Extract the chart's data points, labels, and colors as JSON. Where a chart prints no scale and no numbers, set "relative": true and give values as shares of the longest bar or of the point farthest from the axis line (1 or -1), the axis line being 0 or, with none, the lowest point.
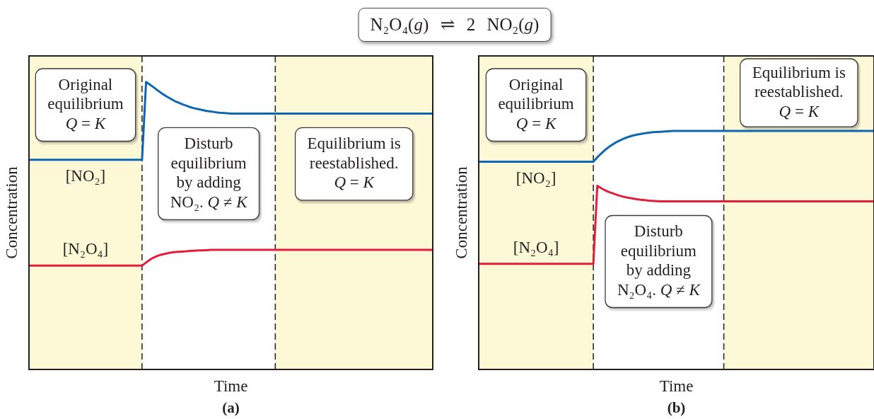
{
  "chart_data": [
    {
      "type": "line",
      "title": "N₂O₄(g) ⇌ 2 NO₂(g)",
      "xlabel": "Time",
      "ylabel": "Concentration",
      "relative": true,
      "categories": [
        null,
        null,
        null,
        null,
        null,
        null,
        null,
        null,
        null,
        null,
        null,
        null,
        null,
        null,
        null,
        null,
        null,
        null,
        null,
        null,
        null,
        null,
        null,
        null,
        null,
        null,
        null,
        null,
        null,
        null,
        null,
        null,
        null,
        null,
        null,
        null,
        null,
        null,
        null,
        null,
        null,
        null,
        null,
        null,
        null,
        null,
        null,
        null,
        null,
        null,
        null,
        null,
        null,
        null,
        null,
        null,
        null,
        null,
        null,
        null,
        null,
        null,
        null,
        null,
        null,
        null,
        null,
        null,
        null,
        null,
        null,
        null,
        null,
        null,
        null,
        null,
        null,
        null,
        null,
        null,
        null,
        null,
        null,
        null,
        null,
        null,
        null,
        null,
        null,
        null,
        null,
        null,
        null,
        null,
        null,
        null,
        null,
        null,
        null,
        null,
        null
      ],
      "series": [
        {
          "name": "[NO₂]",
          "color": "#0e67b2",
          "values": [
            0.729,
            0.729,
            0.729,
            0.729,
            0.729,
            0.729,
            0.729,
            0.729,
            0.729,
            0.729,
            0.729,
            0.729,
            0.729,
            0.729,
            0.729,
            0.729,
            0.729,
            0.729,
            0.729,
            0.729,
            0.729,
            0.729,
            0.729,
            0.729,
            0.729,
            0.729,
            0.729,
            0.729,
            0.729,
            1,
            0.99,
            0.98,
            0.969,
            0.959,
            0.95,
            0.942,
            0.934,
            0.928,
            0.922,
            0.917,
            0.912,
            0.908,
            0.905,
            0.902,
            0.899,
            0.897,
            0.895,
            0.893,
            0.892,
            0.891,
            0.89,
            0.89,
            0.89,
            0.89,
            0.89,
            0.89,
            0.89,
            0.89,
            0.89,
            0.89,
            0.89,
            0.89,
            0.89,
            0.89,
            0.89,
            0.89,
            0.89,
            0.89,
            0.89,
            0.89,
            0.89,
            0.89,
            0.89,
            0.89,
            0.89,
            0.89,
            0.89,
            0.89,
            0.89,
            0.89,
            0.89,
            0.89,
            0.89,
            0.89,
            0.89,
            0.89,
            0.89,
            0.89,
            0.89,
            0.89,
            0.89,
            0.89,
            0.89,
            0.89,
            0.89,
            0.89,
            0.89,
            0.89,
            0.89,
            0.89,
            0.89
          ]
        },
        {
          "name": "[N₂O₄]",
          "color": "#e41e3a",
          "values": [
            0.361,
            0.361,
            0.361,
            0.361,
            0.361,
            0.361,
            0.361,
            0.361,
            0.361,
            0.361,
            0.361,
            0.361,
            0.361,
            0.361,
            0.361,
            0.361,
            0.361,
            0.361,
            0.361,
            0.361,
            0.361,
            0.361,
            0.361,
            0.361,
            0.361,
            0.361,
            0.361,
            0.361,
            0.361,
            0.372,
            0.382,
            0.39,
            0.396,
            0.4,
            0.403,
            0.406,
            0.408,
            0.409,
            0.41,
            0.411,
            0.412,
            0.413,
            0.414,
            0.414,
            0.415,
            0.416,
            0.416,
            0.416,
            0.416,
            0.416,
            0.416,
            0.416,
            0.416,
            0.416,
            0.416,
            0.416,
            0.416,
            0.416,
            0.416,
            0.416,
            0.416,
            0.416,
            0.416,
            0.416,
            0.416,
            0.416,
            0.416,
            0.416,
            0.416,
            0.416,
            0.416,
            0.416,
            0.416,
            0.416,
            0.416,
            0.416,
            0.416,
            0.416,
            0.416,
            0.416,
            0.416,
            0.416,
            0.416,
            0.416,
            0.416,
            0.416,
            0.416,
            0.416,
            0.416,
            0.416,
            0.416,
            0.416,
            0.416,
            0.416,
            0.416,
            0.416,
            0.416,
            0.416,
            0.416,
            0.416,
            0.416
          ]
        }
      ],
      "annotations": [
        "Original\nequilibrium\nQ = K",
        "Disturb\nequilibrium\nby adding\nNO₂. Q ≠ K",
        "Equilibrium is\nreestablished.\nQ = K",
        "(a)"
      ]
    },
    {
      "type": "line",
      "xlabel": "Time",
      "ylabel": "Concentration",
      "relative": true,
      "categories": [
        null,
        null,
        null,
        null,
        null,
        null,
        null,
        null,
        null,
        null,
        null,
        null,
        null,
        null,
        null,
        null,
        null,
        null,
        null,
        null,
        null,
        null,
        null,
        null,
        null,
        null,
        null,
        null,
        null,
        null,
        null,
        null,
        null,
        null,
        null,
        null,
        null,
        null,
        null,
        null,
        null,
        null,
        null,
        null,
        null,
        null,
        null,
        null,
        null,
        null,
        null,
        null,
        null,
        null,
        null,
        null,
        null,
        null,
        null,
        null,
        null,
        null,
        null,
        null,
        null,
        null,
        null,
        null,
        null,
        null,
        null,
        null,
        null,
        null,
        null,
        null,
        null,
        null,
        null,
        null,
        null,
        null,
        null,
        null,
        null,
        null,
        null,
        null,
        null,
        null,
        null,
        null,
        null,
        null,
        null,
        null,
        null,
        null,
        null,
        null,
        null
      ],
      "series": [
        {
          "name": "[NO₂]",
          "color": "#0e67b2",
          "values": [
            0.871,
            0.871,
            0.871,
            0.871,
            0.871,
            0.871,
            0.871,
            0.871,
            0.871,
            0.871,
            0.871,
            0.871,
            0.871,
            0.871,
            0.871,
            0.871,
            0.871,
            0.871,
            0.871,
            0.871,
            0.871,
            0.871,
            0.871,
            0.871,
            0.871,
            0.871,
            0.871,
            0.871,
            0.871,
            0.871,
            0.89,
            0.906,
            0.921,
            0.934,
            0.945,
            0.955,
            0.963,
            0.97,
            0.976,
            0.981,
            0.985,
            0.988,
            0.991,
            0.993,
            0.995,
            0.996,
            0.997,
            0.998,
            0.999,
            1,
            1,
            1,
            1,
            1,
            1,
            1,
            1,
            1,
            1,
            1,
            1,
            1,
            1,
            1,
            1,
            1,
            1,
            1,
            1,
            1,
            1,
            1,
            1,
            1,
            1,
            1,
            1,
            1,
            1,
            1,
            1,
            1,
            1,
            1,
            1,
            1,
            1,
            1,
            1,
            1,
            1,
            1,
            1,
            1,
            1,
            1,
            1,
            1,
            1,
            1,
            1
          ]
        },
        {
          "name": "[N₂O₄]",
          "color": "#e41e3a",
          "values": [
            0.443,
            0.443,
            0.443,
            0.443,
            0.443,
            0.443,
            0.443,
            0.443,
            0.443,
            0.443,
            0.443,
            0.443,
            0.443,
            0.443,
            0.443,
            0.443,
            0.443,
            0.443,
            0.443,
            0.443,
            0.443,
            0.443,
            0.443,
            0.443,
            0.443,
            0.443,
            0.443,
            0.443,
            0.443,
            0.443,
            0.77,
            0.76,
            0.751,
            0.744,
            0.738,
            0.732,
            0.727,
            0.723,
            0.72,
            0.717,
            0.714,
            0.712,
            0.71,
            0.708,
            0.707,
            0.706,
            0.705,
            0.705,
            0.705,
            0.705,
            0.705,
            0.705,
            0.705,
            0.705,
            0.705,
            0.705,
            0.705,
            0.705,
            0.705,
            0.705,
            0.705,
            0.705,
            0.705,
            0.705,
            0.705,
            0.705,
            0.705,
            0.705,
            0.705,
            0.705,
            0.705,
            0.705,
            0.705,
            0.705,
            0.705,
            0.705,
            0.705,
            0.705,
            0.705,
            0.705,
            0.705,
            0.705,
            0.705,
            0.705,
            0.705,
            0.705,
            0.705,
            0.705,
            0.705,
            0.705,
            0.705,
            0.705,
            0.705,
            0.705,
            0.705,
            0.705,
            0.705,
            0.705,
            0.705,
            0.705,
            0.705
          ]
        }
      ],
      "annotations": [
        "Original\nequilibrium\nQ = K",
        "Disturb\nequilibrium\nby adding\nN₂O₄. Q ≠ K",
        "Equilibrium is\nreestablished.\nQ = K",
        "(b)"
      ]
    }
  ]
}
